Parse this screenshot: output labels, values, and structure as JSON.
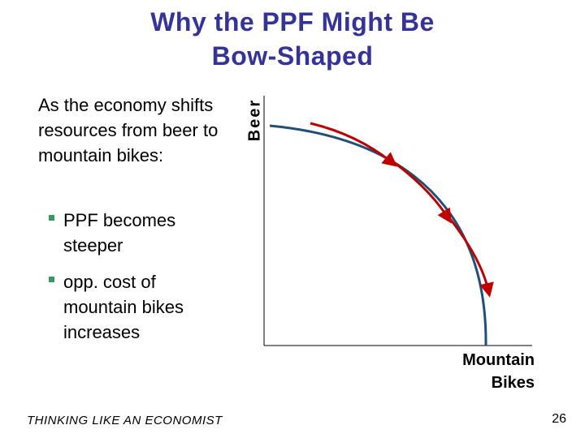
{
  "slide": {
    "title_line1": "Why the PPF Might Be",
    "title_line2": "Bow-Shaped",
    "intro": "As the economy shifts resources from beer to mountain bikes:",
    "bullets": [
      "PPF becomes steeper",
      "opp. cost of mountain bikes increases"
    ],
    "footer": "THINKING LIKE AN ECONOMIST",
    "page_number": "26"
  },
  "diagram": {
    "y_axis_label": "Beer",
    "x_axis_label_line1": "Mountain",
    "x_axis_label_line2": "Bikes",
    "curve_color": "#1f4e79",
    "arrow_color": "#c00000",
    "axis_color": "#000000"
  }
}
